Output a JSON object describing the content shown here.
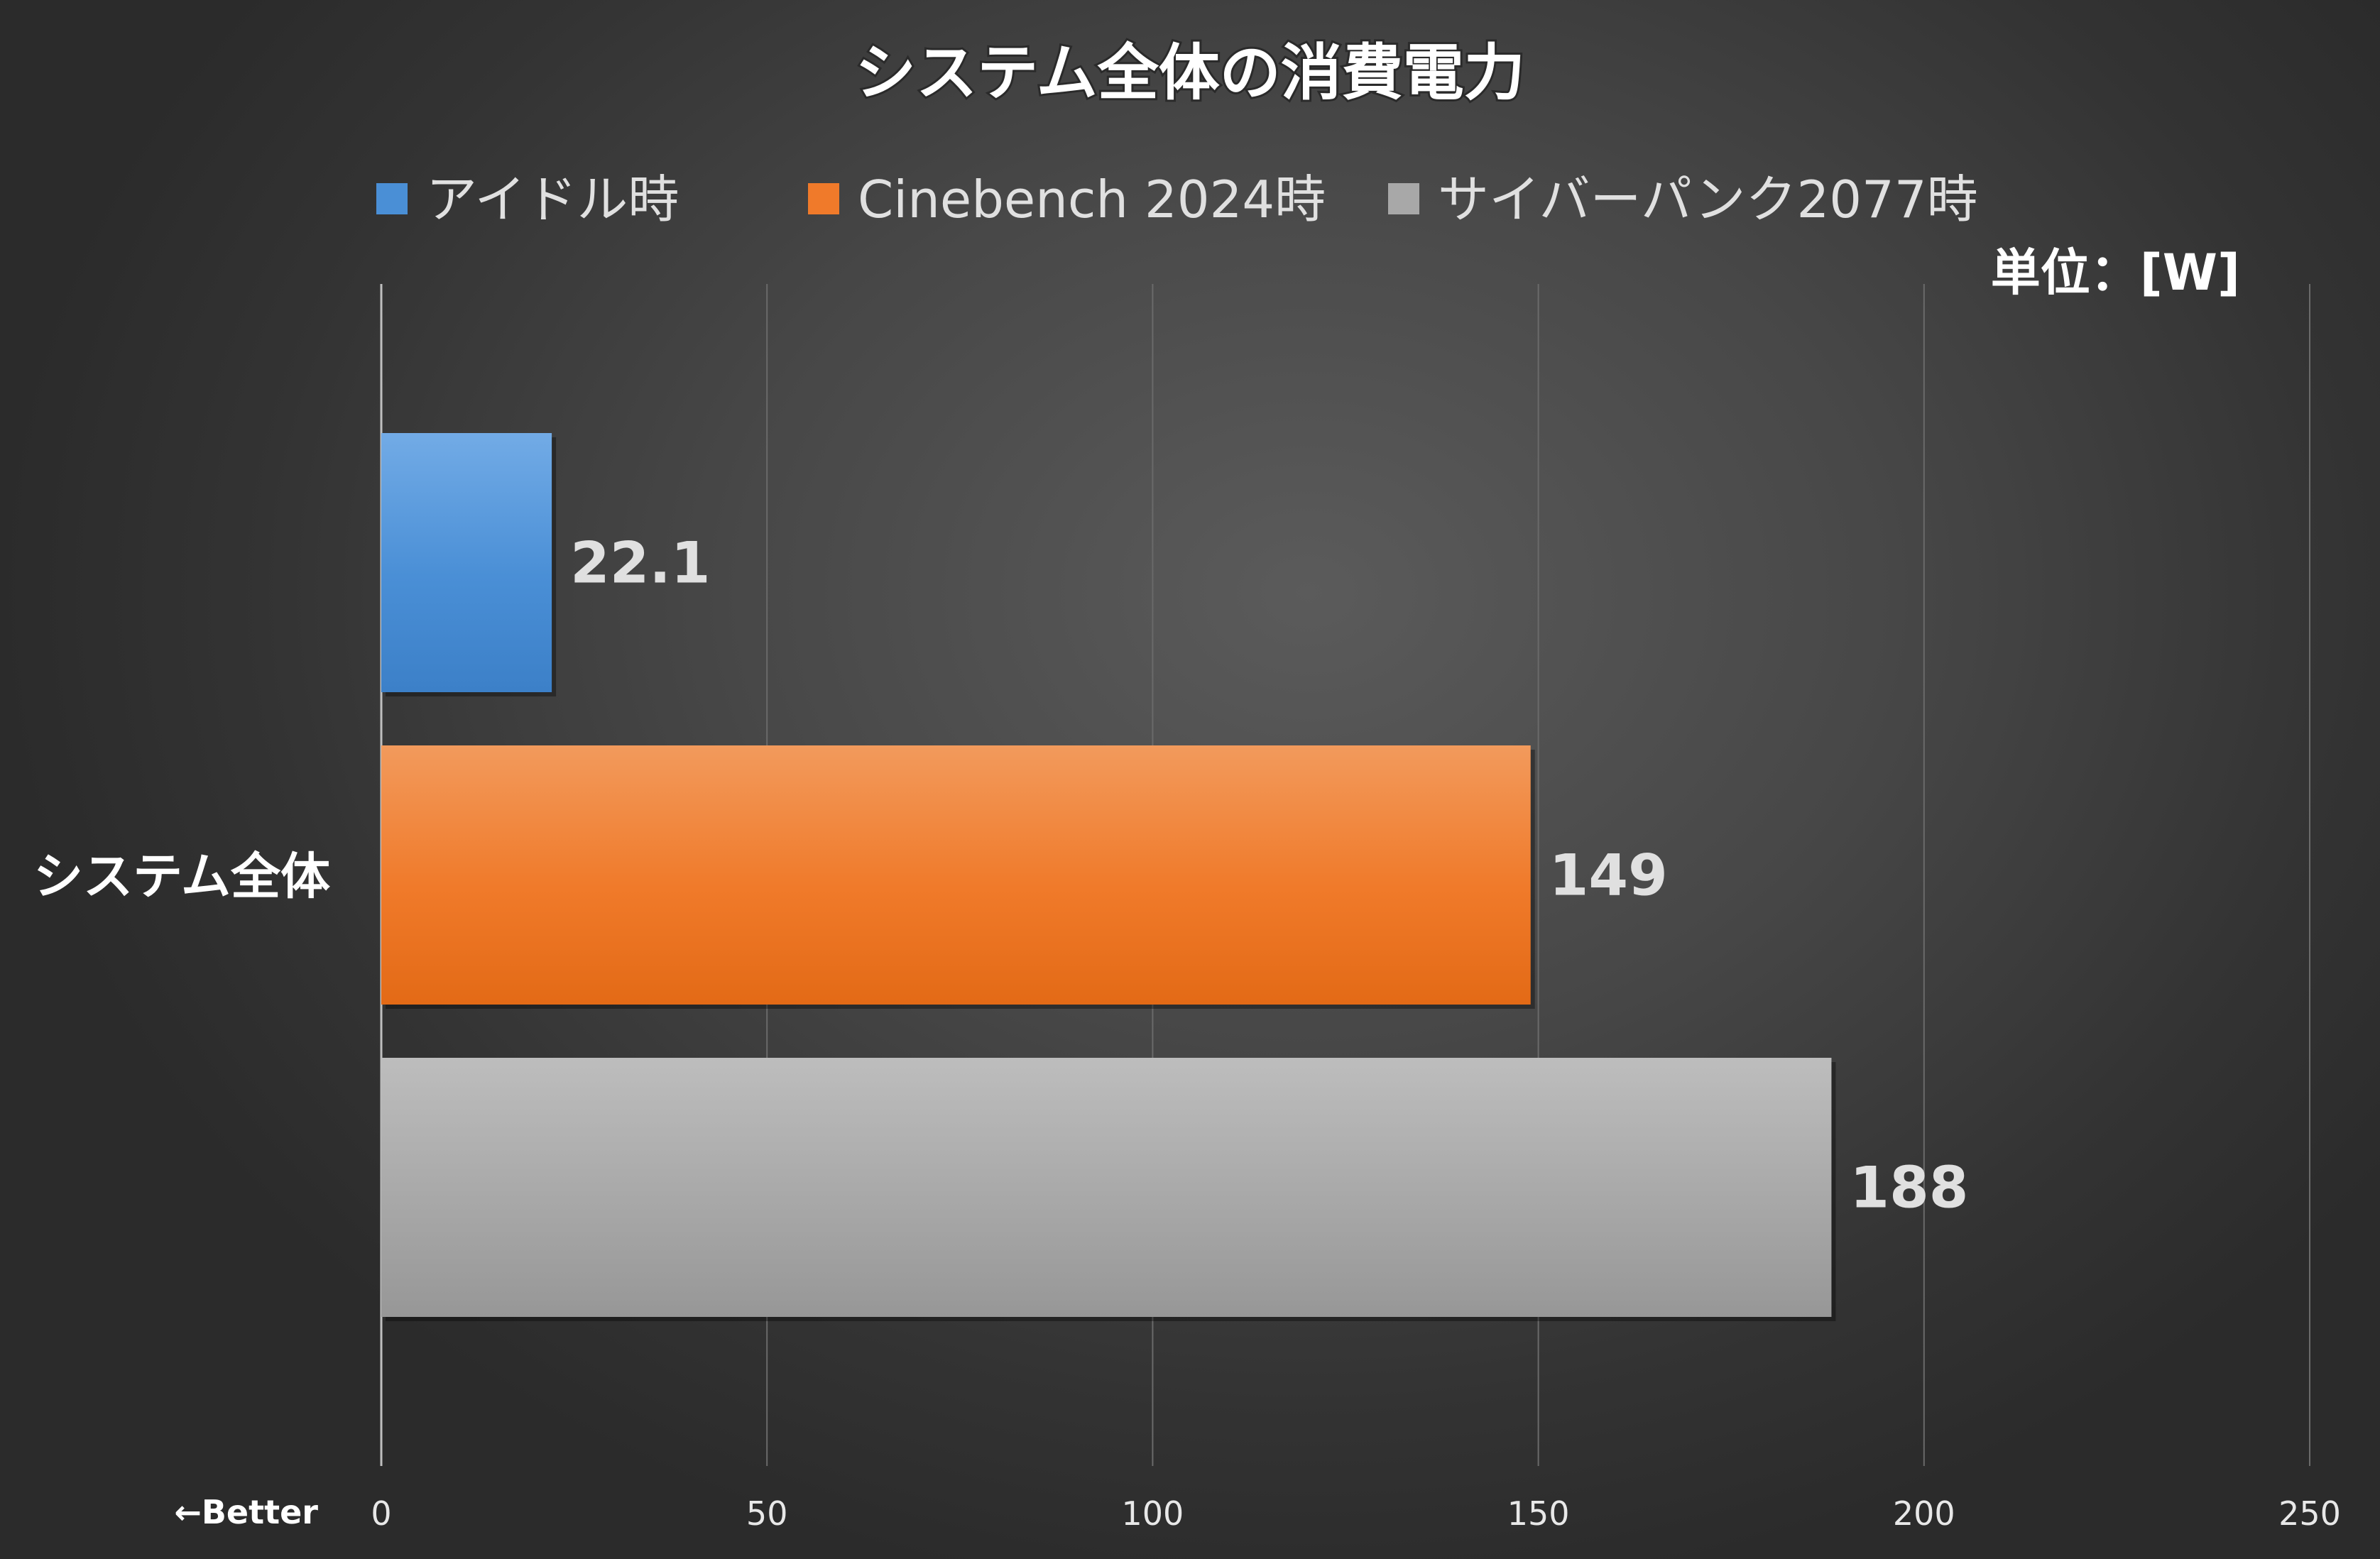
{
  "chart_data": {
    "type": "bar",
    "orientation": "horizontal",
    "title": "システム全体の消費電力",
    "unit_label": "単位：[W]",
    "corner_note": "←Better",
    "categories": [
      "システム全体"
    ],
    "series": [
      {
        "name": "アイドル時",
        "values": [
          22.1
        ],
        "value_label": "22.1",
        "color": "#4a8fd6",
        "color_light": "#72abe6",
        "color_dark": "#3c80c8"
      },
      {
        "name": "Cinebench 2024時",
        "values": [
          149
        ],
        "value_label": "149",
        "color": "#f07a2a",
        "color_light": "#f29a5c",
        "color_dark": "#e36a16"
      },
      {
        "name": "サイバーパンク2077時",
        "values": [
          188
        ],
        "value_label": "188",
        "color": "#a8a8a8",
        "color_light": "#bdbdbd",
        "color_dark": "#979797"
      }
    ],
    "xlim": [
      0,
      250
    ],
    "xticks": [
      0,
      50,
      100,
      150,
      200,
      250
    ],
    "xtick_labels": [
      "0",
      "50",
      "100",
      "150",
      "200",
      "250"
    ],
    "grid": true,
    "legend_position": "top"
  }
}
